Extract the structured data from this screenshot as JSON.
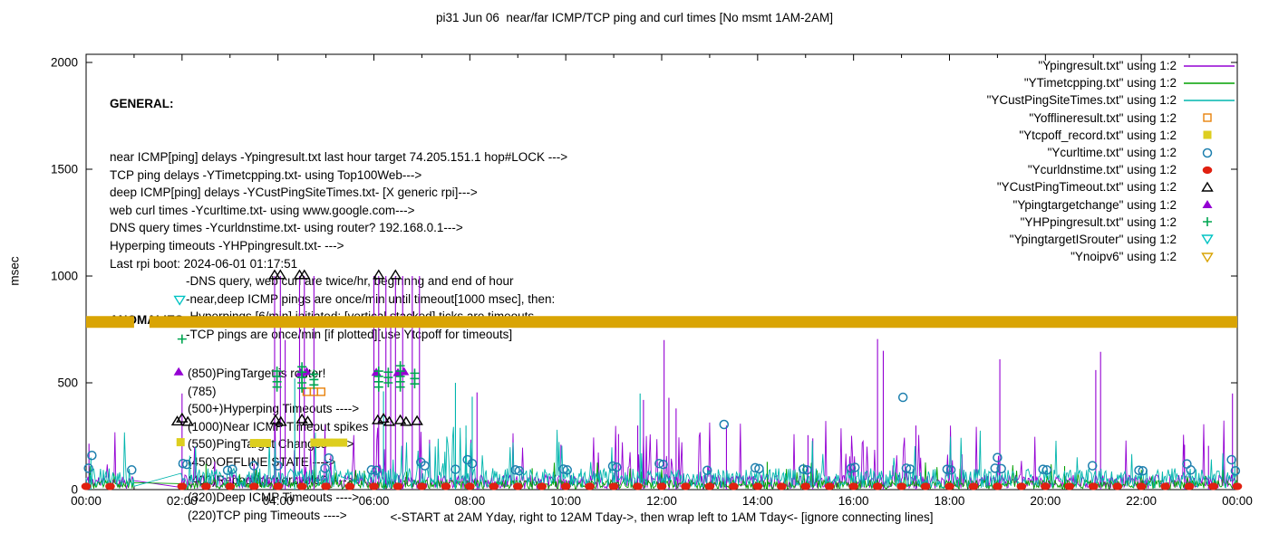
{
  "title": "pi31 Jun 06  near/far ICMP/TCP ping and curl times [No msmt 1AM-2AM]",
  "caption": "<-START at 2AM Yday, right to 12AM Tday->, then wrap left to 1AM Tday<- [ignore connecting lines]",
  "general": {
    "heading": "GENERAL:",
    "lines": [
      {
        "t": "near ICMP[ping] delays -Ypingresult.txt last hour target 74.205.151.1 hop#LOCK --->",
        "i": false
      },
      {
        "t": "TCP ping delays -YTimetcpping.txt- using Top100Web--->",
        "i": false
      },
      {
        "t": "deep ICMP[ping] delays -YCustPingSiteTimes.txt- [X generic rpi]--->",
        "i": false
      },
      {
        "t": "web curl times -Ycurltime.txt- using www.google.com--->",
        "i": false
      },
      {
        "t": "DNS query times -Ycurldnstime.txt- using router? 192.168.0.1--->",
        "i": false
      },
      {
        "t": "Hyperping timeouts -YHPpingresult.txt- --->",
        "i": false
      },
      {
        "t": "Last rpi boot: 2024-06-01 01:17:51",
        "i": false
      },
      {
        "t": "-DNS query, web curl are twice/hr, beginnng and end of hour",
        "i": true
      },
      {
        "t": "-near,deep ICMP pings are once/min until timeout[1000 msec], then:",
        "i": true
      },
      {
        "t": "-Hyperpings [6/min] initiated; [vertical stacked] ticks are timeouts",
        "i": true
      },
      {
        "t": "-TCP pings are once/min [if plotted][use Ytcpoff for timeouts]",
        "i": true
      }
    ]
  },
  "anomalies": {
    "heading": "ANOMALIES:",
    "lines": [
      "(850)PingTarget is router!",
      "(785)",
      "(500+)Hyperping Timeouts ---->",
      "(1000)Near ICMP Timeout spikes",
      "(550)PingTarget Changes ---->",
      "(450)OFFLINE STATE ---->",
      "(400)Reboot/powercycle? ---->",
      "(320)Deep ICMP Timeouts ---->",
      "(220)TCP ping Timeouts ---->"
    ]
  },
  "legend": {
    "entries": [
      {
        "label": "\"Ypingresult.txt\" using 1:2",
        "key": "line",
        "color": "#9400d3"
      },
      {
        "label": "\"YTimetcpping.txt\" using 1:2",
        "key": "line",
        "color": "#00a000"
      },
      {
        "label": "\"YCustPingSiteTimes.txt\" using 1:2",
        "key": "line",
        "color": "#00b5ad"
      },
      {
        "label": "\"Yofflineresult.txt\" using 1:2",
        "key": "square-open",
        "color": "#e8820c"
      },
      {
        "label": "\"Ytcpoff_record.txt\" using 1:2",
        "key": "square-filled",
        "color": "#ddce1f"
      },
      {
        "label": "\"Ycurltime.txt\" using 1:2",
        "key": "circle-open",
        "color": "#1d7fae"
      },
      {
        "label": "\"Ycurldnstime.txt\" using 1:2",
        "key": "circle-filled",
        "color": "#e02010"
      },
      {
        "label": "\"YCustPingTimeout.txt\" using 1:2",
        "key": "triangle-open",
        "color": "#000000"
      },
      {
        "label": "\"Ypingtargetchange\" using 1:2",
        "key": "triangle-filled",
        "color": "#9400d3"
      },
      {
        "label": "\"YHPpingresult.txt\" using 1:2",
        "key": "plus",
        "color": "#00a551"
      },
      {
        "label": "\"YpingtargetISrouter\" using 1:2",
        "key": "triangle-down-open",
        "color": "#00c3c3"
      },
      {
        "label": "\"Ynoipv6\" using 1:2",
        "key": "triangle-down-open",
        "color": "#d9a404"
      }
    ]
  },
  "chart_data": {
    "type": "line",
    "title": "pi31 Jun 06  near/far ICMP/TCP ping and curl times [No msmt 1AM-2AM]",
    "ylabel": "msec",
    "y_axis": {
      "range": [
        0,
        2038
      ],
      "ticks": [
        0,
        500,
        1000,
        1500,
        2000
      ]
    },
    "x_axis": {
      "tick_hours": [
        0,
        2,
        4,
        6,
        8,
        10,
        12,
        14,
        16,
        18,
        20,
        22,
        24
      ],
      "tick_labels": [
        "00:00",
        "02:00",
        "04:00",
        "06:00",
        "08:00",
        "10:00",
        "12:00",
        "14:00",
        "16:00",
        "18:00",
        "20:00",
        "22:00",
        "00:00"
      ],
      "minor_step_hours": 1
    },
    "no_measurement_gap_hours": [
      1,
      2
    ],
    "band": {
      "name": "Ynoipv6",
      "value_msec": 785,
      "color": "#d9a404",
      "thickness_px": 13,
      "gap_hours": [
        1.0,
        1.32
      ]
    },
    "series": [
      {
        "name": "Ypingresult.txt",
        "color": "#9400d3",
        "style": "noise-line",
        "noise": {
          "seed": 11,
          "base_min": 4,
          "base_max": 70,
          "spike_chance": 0.05,
          "spike_min": 100,
          "spike_max": 330,
          "boost": [
            [
              11.0,
              12.5
            ],
            [
              15.8,
              17.4
            ]
          ],
          "boost_chance": 0.2,
          "boost_min": 100,
          "boost_max": 260
        },
        "impulses": [
          [
            0.06,
            215
          ],
          [
            2.0,
            450
          ],
          [
            3.93,
            1000
          ],
          [
            4.05,
            1000
          ],
          [
            4.15,
            700
          ],
          [
            4.45,
            1000
          ],
          [
            4.55,
            1000
          ],
          [
            4.75,
            1000
          ],
          [
            6.0,
            1000
          ],
          [
            6.1,
            1000
          ],
          [
            6.25,
            1000
          ],
          [
            6.35,
            820
          ],
          [
            6.45,
            1000
          ],
          [
            6.6,
            1000
          ],
          [
            6.8,
            1000
          ],
          [
            6.95,
            1000
          ],
          [
            8.15,
            455
          ],
          [
            9.9,
            210
          ],
          [
            11.1,
            260
          ],
          [
            11.5,
            300
          ],
          [
            11.62,
            420
          ],
          [
            12.05,
            700
          ],
          [
            12.15,
            430
          ],
          [
            12.3,
            380
          ],
          [
            13.35,
            300
          ],
          [
            15.05,
            255
          ],
          [
            15.15,
            240
          ],
          [
            16.5,
            705
          ],
          [
            16.62,
            650
          ],
          [
            17.3,
            300
          ],
          [
            19.05,
            610
          ],
          [
            21.05,
            560
          ],
          [
            21.15,
            645
          ],
          [
            22.9,
            210
          ],
          [
            23.4,
            205
          ],
          [
            23.9,
            450
          ]
        ]
      },
      {
        "name": "YTimetcpping.txt",
        "color": "#00a000",
        "style": "noise-line",
        "noise": {
          "seed": 23,
          "base_min": 3,
          "base_max": 45,
          "spike_chance": 0.02,
          "spike_min": 60,
          "spike_max": 130
        },
        "impulses": [
          [
            2.5,
            120
          ],
          [
            9.3,
            100
          ],
          [
            14.2,
            130
          ],
          [
            20.4,
            110
          ]
        ]
      },
      {
        "name": "YCustPingSiteTimes.txt",
        "color": "#00b5ad",
        "style": "noise-line",
        "noise": {
          "seed": 37,
          "base_min": 8,
          "base_max": 100,
          "spike_chance": 0.025,
          "spike_min": 120,
          "spike_max": 280,
          "boost": [
            [
              6.3,
              8.3
            ]
          ],
          "boost_chance": 0.15,
          "boost_min": 120,
          "boost_max": 300
        },
        "impulses": [
          [
            0.1,
            150
          ],
          [
            4.35,
            520
          ],
          [
            6.2,
            460
          ],
          [
            7.7,
            500
          ],
          [
            7.92,
            300
          ],
          [
            8.05,
            435
          ],
          [
            11.55,
            450
          ],
          [
            23.95,
            150
          ]
        ]
      },
      {
        "name": "Yofflineresult.txt",
        "color": "#e8820c",
        "style": "points",
        "marker": "square-open",
        "points": [
          [
            4.6,
            458
          ],
          [
            4.75,
            458
          ],
          [
            4.9,
            458
          ]
        ]
      },
      {
        "name": "Ytcpoff_record.txt",
        "color": "#ddce1f",
        "style": "points",
        "marker": "square-filled",
        "points": [
          [
            1.97,
            222
          ],
          [
            3.5,
            218
          ],
          [
            3.63,
            218
          ],
          [
            3.77,
            218
          ],
          [
            4.76,
            220
          ],
          [
            4.9,
            220
          ],
          [
            5.05,
            220
          ],
          [
            5.2,
            220
          ],
          [
            5.36,
            220
          ]
        ]
      },
      {
        "name": "Ycurltime.txt",
        "color": "#1d7fae",
        "style": "points",
        "marker": "circle-open",
        "points": [
          [
            0.05,
            100
          ],
          [
            0.12,
            160
          ],
          [
            0.95,
            92
          ],
          [
            2.02,
            122
          ],
          [
            2.1,
            118
          ],
          [
            2.95,
            90
          ],
          [
            3.05,
            95
          ],
          [
            3.5,
            112
          ],
          [
            4.0,
            112
          ],
          [
            4.98,
            100
          ],
          [
            5.06,
            148
          ],
          [
            5.95,
            92
          ],
          [
            6.05,
            90
          ],
          [
            6.98,
            128
          ],
          [
            7.06,
            112
          ],
          [
            7.7,
            95
          ],
          [
            7.95,
            140
          ],
          [
            8.05,
            122
          ],
          [
            8.95,
            92
          ],
          [
            9.03,
            88
          ],
          [
            9.95,
            96
          ],
          [
            10.03,
            92
          ],
          [
            10.98,
            110
          ],
          [
            11.06,
            105
          ],
          [
            11.95,
            122
          ],
          [
            12.03,
            118
          ],
          [
            12.95,
            90
          ],
          [
            13.3,
            305
          ],
          [
            13.95,
            102
          ],
          [
            14.03,
            98
          ],
          [
            14.95,
            96
          ],
          [
            15.03,
            92
          ],
          [
            15.95,
            100
          ],
          [
            16.03,
            104
          ],
          [
            17.03,
            432
          ],
          [
            17.1,
            100
          ],
          [
            17.18,
            96
          ],
          [
            17.95,
            95
          ],
          [
            18.03,
            92
          ],
          [
            18.95,
            100
          ],
          [
            19.0,
            150
          ],
          [
            19.08,
            98
          ],
          [
            19.95,
            95
          ],
          [
            20.03,
            92
          ],
          [
            20.98,
            112
          ],
          [
            21.95,
            90
          ],
          [
            22.03,
            88
          ],
          [
            22.95,
            120
          ],
          [
            23.03,
            92
          ],
          [
            23.88,
            140
          ],
          [
            23.96,
            88
          ]
        ]
      },
      {
        "name": "Ycurldnstime.txt",
        "color": "#e02010",
        "style": "points",
        "marker": "circle-filled",
        "points_spec": {
          "start": 0,
          "end": 24,
          "step": 0.5,
          "skip": [
            1.0,
            1.5
          ],
          "value": 15
        }
      },
      {
        "name": "YCustPingTimeout.txt",
        "color": "#000000",
        "style": "points",
        "marker": "triangle-open",
        "points": [
          [
            1.9,
            320
          ],
          [
            2.0,
            334
          ],
          [
            2.12,
            318
          ],
          [
            3.95,
            326
          ],
          [
            4.06,
            318
          ],
          [
            4.5,
            330
          ],
          [
            4.62,
            320
          ],
          [
            6.08,
            326
          ],
          [
            6.2,
            333
          ],
          [
            6.32,
            318
          ],
          [
            6.55,
            326
          ],
          [
            6.67,
            318
          ],
          [
            6.9,
            322
          ],
          [
            3.93,
            1005
          ],
          [
            4.05,
            1005
          ],
          [
            4.45,
            1005
          ],
          [
            4.55,
            1005
          ],
          [
            6.1,
            1005
          ],
          [
            6.45,
            1005
          ]
        ]
      },
      {
        "name": "Ypingtargetchange",
        "color": "#9400d3",
        "style": "points",
        "marker": "triangle-filled",
        "points": [
          [
            1.93,
            552
          ],
          [
            4.47,
            548
          ],
          [
            4.6,
            553
          ],
          [
            6.05,
            550
          ],
          [
            6.5,
            548
          ],
          [
            6.63,
            553
          ]
        ]
      },
      {
        "name": "YHPpingresult.txt",
        "color": "#00a551",
        "style": "points",
        "marker": "plus",
        "points": [
          [
            2.0,
            705
          ],
          [
            3.98,
            480
          ],
          [
            3.98,
            505
          ],
          [
            3.98,
            530
          ],
          [
            3.98,
            555
          ],
          [
            4.5,
            475
          ],
          [
            4.5,
            500
          ],
          [
            4.5,
            525
          ],
          [
            4.5,
            550
          ],
          [
            4.5,
            575
          ],
          [
            4.75,
            490
          ],
          [
            4.75,
            515
          ],
          [
            4.75,
            540
          ],
          [
            6.1,
            480
          ],
          [
            6.1,
            505
          ],
          [
            6.1,
            530
          ],
          [
            6.1,
            555
          ],
          [
            6.3,
            500
          ],
          [
            6.3,
            525
          ],
          [
            6.3,
            550
          ],
          [
            6.55,
            480
          ],
          [
            6.55,
            505
          ],
          [
            6.55,
            530
          ],
          [
            6.55,
            555
          ],
          [
            6.55,
            580
          ],
          [
            6.85,
            495
          ],
          [
            6.85,
            520
          ],
          [
            6.85,
            545
          ]
        ]
      },
      {
        "name": "YpingtargetISrouter",
        "color": "#00c3c3",
        "style": "points",
        "marker": "triangle-down-open",
        "points": [
          [
            1.95,
            888
          ]
        ]
      },
      {
        "name": "Ynoipv6",
        "color": "#d9a404",
        "style": "band",
        "marker": "triangle-down-open",
        "value": 785
      }
    ]
  }
}
